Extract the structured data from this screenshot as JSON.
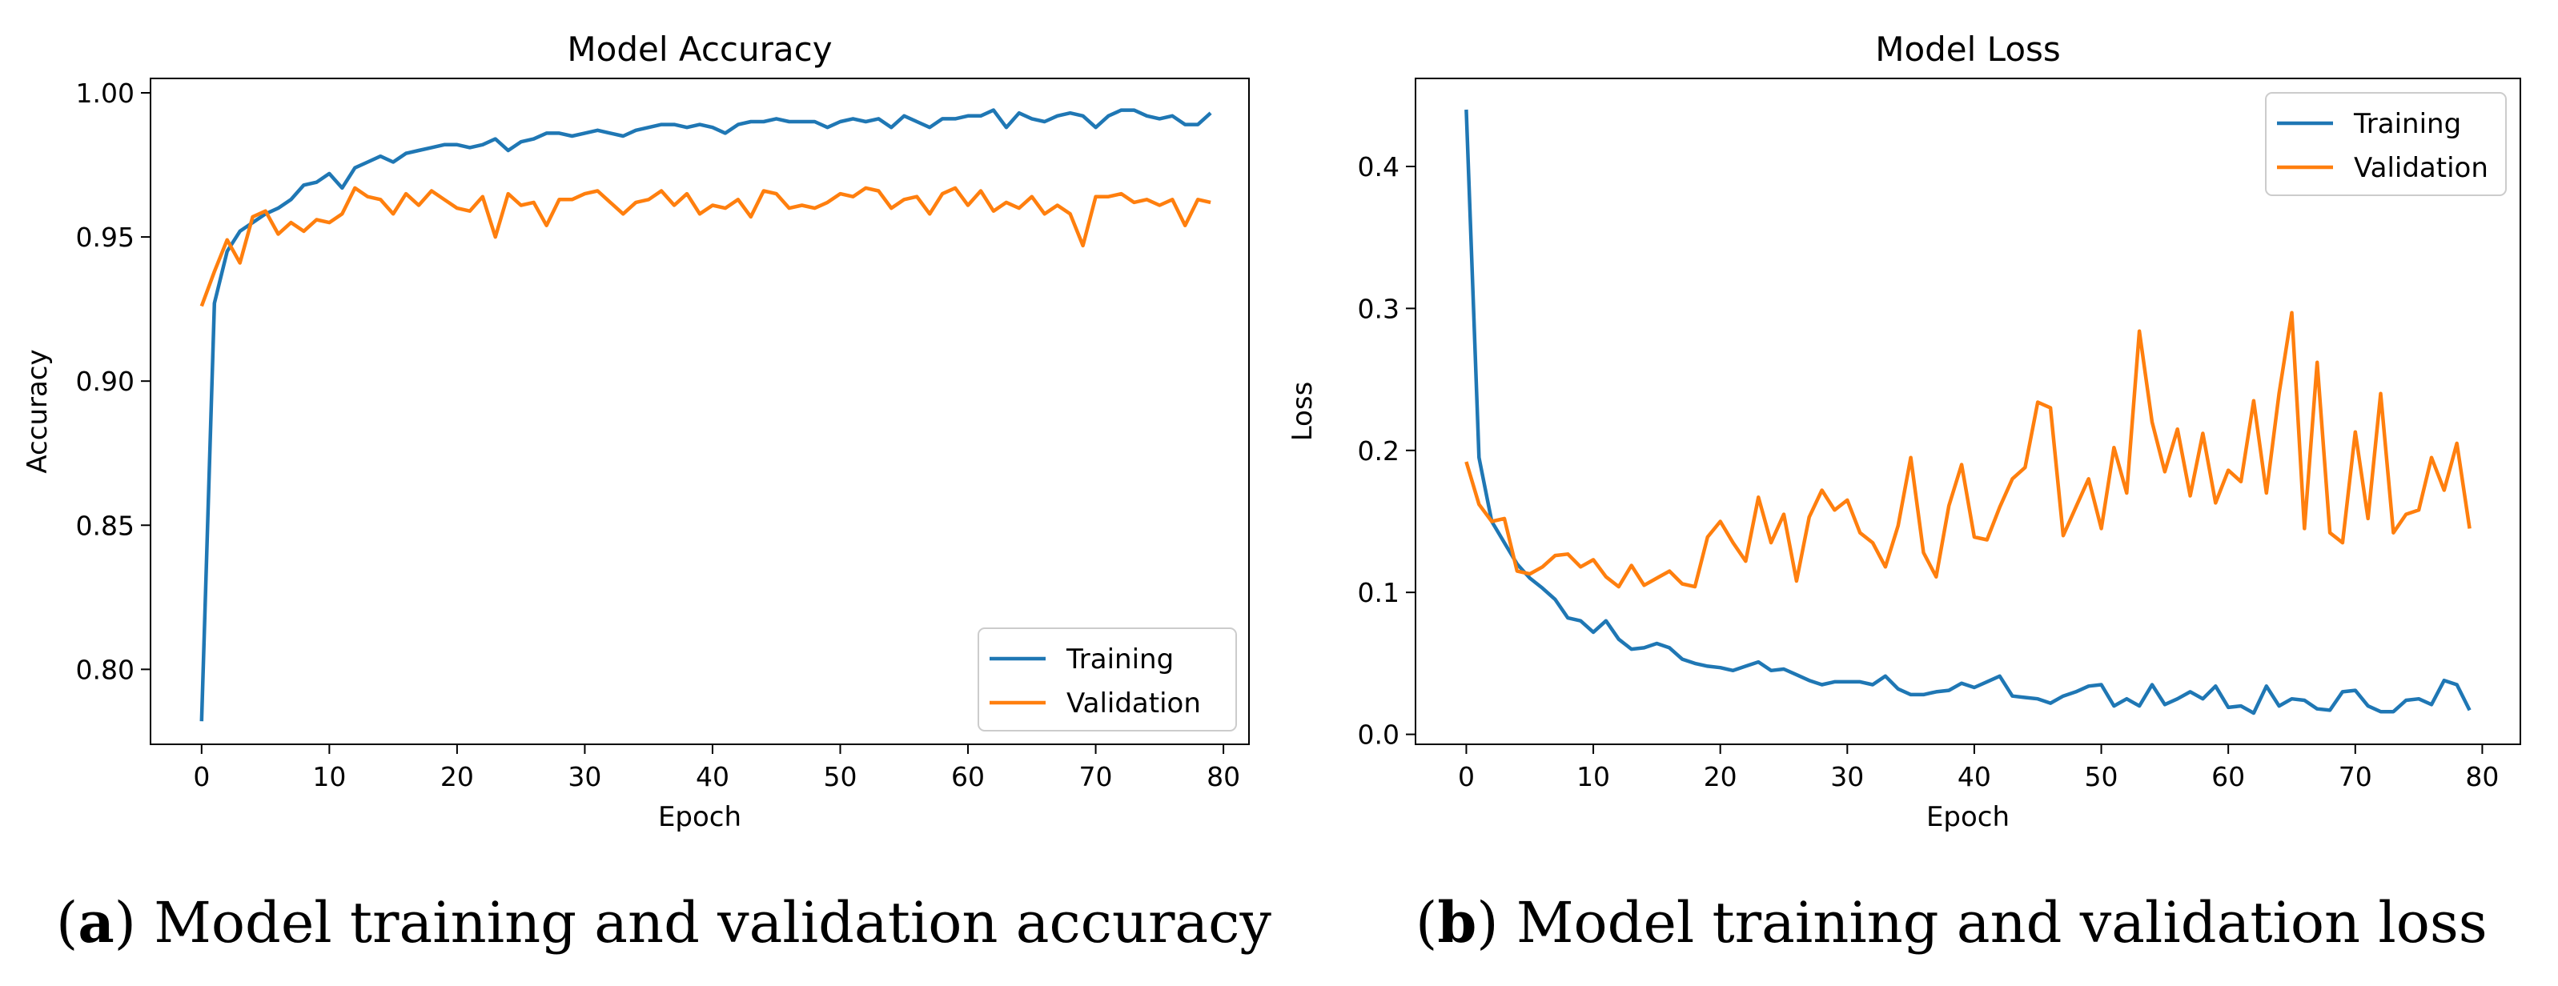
{
  "panels": [
    {
      "caption": {
        "letter": "a",
        "text": ") Model training and validation accuracy"
      },
      "chart_data": {
        "type": "line",
        "title": "Model Accuracy",
        "xlabel": "Epoch",
        "ylabel": "Accuracy",
        "xlim": [
          -4,
          82
        ],
        "ylim": [
          0.774,
          1.005
        ],
        "xticks": [
          0,
          10,
          20,
          30,
          40,
          50,
          60,
          70,
          80
        ],
        "yticks": [
          0.8,
          0.85,
          0.9,
          0.95,
          1.0
        ],
        "ytick_labels": [
          "0.80",
          "0.85",
          "0.90",
          "0.95",
          "1.00"
        ],
        "legend_position": "lower-right",
        "grid": false,
        "series": [
          {
            "name": "Training",
            "color": "#1f77b4",
            "values": [
              0.782,
              0.927,
              0.945,
              0.952,
              0.955,
              0.958,
              0.96,
              0.963,
              0.968,
              0.969,
              0.972,
              0.967,
              0.974,
              0.976,
              0.978,
              0.976,
              0.979,
              0.98,
              0.981,
              0.982,
              0.982,
              0.981,
              0.982,
              0.984,
              0.98,
              0.983,
              0.984,
              0.986,
              0.986,
              0.985,
              0.986,
              0.987,
              0.986,
              0.985,
              0.987,
              0.988,
              0.989,
              0.989,
              0.988,
              0.989,
              0.988,
              0.986,
              0.989,
              0.99,
              0.99,
              0.991,
              0.99,
              0.99,
              0.99,
              0.988,
              0.99,
              0.991,
              0.99,
              0.991,
              0.988,
              0.992,
              0.99,
              0.988,
              0.991,
              0.991,
              0.992,
              0.992,
              0.994,
              0.988,
              0.993,
              0.991,
              0.99,
              0.992,
              0.993,
              0.992,
              0.988,
              0.992,
              0.994,
              0.994,
              0.992,
              0.991,
              0.992,
              0.989,
              0.989,
              0.993
            ]
          },
          {
            "name": "Validation",
            "color": "#ff7f0e",
            "values": [
              0.926,
              0.938,
              0.949,
              0.941,
              0.957,
              0.959,
              0.951,
              0.955,
              0.952,
              0.956,
              0.955,
              0.958,
              0.967,
              0.964,
              0.963,
              0.958,
              0.965,
              0.961,
              0.966,
              0.963,
              0.96,
              0.959,
              0.964,
              0.95,
              0.965,
              0.961,
              0.962,
              0.954,
              0.963,
              0.963,
              0.965,
              0.966,
              0.962,
              0.958,
              0.962,
              0.963,
              0.966,
              0.961,
              0.965,
              0.958,
              0.961,
              0.96,
              0.963,
              0.957,
              0.966,
              0.965,
              0.96,
              0.961,
              0.96,
              0.962,
              0.965,
              0.964,
              0.967,
              0.966,
              0.96,
              0.963,
              0.964,
              0.958,
              0.965,
              0.967,
              0.961,
              0.966,
              0.959,
              0.962,
              0.96,
              0.964,
              0.958,
              0.961,
              0.958,
              0.947,
              0.964,
              0.964,
              0.965,
              0.962,
              0.963,
              0.961,
              0.963,
              0.954,
              0.963,
              0.962
            ]
          }
        ]
      }
    },
    {
      "caption": {
        "letter": "b",
        "text": ") Model training and validation loss"
      },
      "chart_data": {
        "type": "line",
        "title": "Model Loss",
        "xlabel": "Epoch",
        "ylabel": "Loss",
        "xlim": [
          -4,
          83
        ],
        "ylim": [
          -0.007,
          0.462
        ],
        "xticks": [
          0,
          10,
          20,
          30,
          40,
          50,
          60,
          70,
          80
        ],
        "yticks": [
          0.0,
          0.1,
          0.2,
          0.3,
          0.4
        ],
        "ytick_labels": [
          "0.0",
          "0.1",
          "0.2",
          "0.3",
          "0.4"
        ],
        "legend_position": "upper-right",
        "grid": false,
        "series": [
          {
            "name": "Training",
            "color": "#1f77b4",
            "values": [
              0.44,
              0.195,
              0.15,
              0.135,
              0.12,
              0.11,
              0.103,
              0.095,
              0.082,
              0.08,
              0.072,
              0.08,
              0.067,
              0.06,
              0.061,
              0.064,
              0.061,
              0.053,
              0.05,
              0.048,
              0.047,
              0.045,
              0.048,
              0.051,
              0.045,
              0.046,
              0.042,
              0.038,
              0.035,
              0.037,
              0.037,
              0.037,
              0.035,
              0.041,
              0.032,
              0.028,
              0.028,
              0.03,
              0.031,
              0.036,
              0.033,
              0.037,
              0.041,
              0.027,
              0.026,
              0.025,
              0.022,
              0.027,
              0.03,
              0.034,
              0.035,
              0.02,
              0.025,
              0.02,
              0.035,
              0.021,
              0.025,
              0.03,
              0.025,
              0.034,
              0.019,
              0.02,
              0.015,
              0.034,
              0.02,
              0.025,
              0.024,
              0.018,
              0.017,
              0.03,
              0.031,
              0.02,
              0.016,
              0.016,
              0.024,
              0.025,
              0.021,
              0.038,
              0.035,
              0.017
            ]
          },
          {
            "name": "Validation",
            "color": "#ff7f0e",
            "values": [
              0.192,
              0.162,
              0.15,
              0.152,
              0.115,
              0.113,
              0.118,
              0.126,
              0.127,
              0.118,
              0.123,
              0.111,
              0.104,
              0.119,
              0.105,
              0.11,
              0.115,
              0.106,
              0.104,
              0.139,
              0.15,
              0.135,
              0.122,
              0.167,
              0.135,
              0.155,
              0.108,
              0.153,
              0.172,
              0.158,
              0.165,
              0.142,
              0.135,
              0.118,
              0.147,
              0.195,
              0.128,
              0.111,
              0.161,
              0.19,
              0.139,
              0.137,
              0.16,
              0.18,
              0.188,
              0.234,
              0.23,
              0.14,
              0.16,
              0.18,
              0.145,
              0.202,
              0.17,
              0.284,
              0.22,
              0.185,
              0.215,
              0.168,
              0.212,
              0.163,
              0.186,
              0.178,
              0.235,
              0.17,
              0.24,
              0.297,
              0.145,
              0.262,
              0.142,
              0.135,
              0.213,
              0.152,
              0.24,
              0.142,
              0.155,
              0.158,
              0.195,
              0.172,
              0.205,
              0.145
            ]
          }
        ]
      }
    }
  ]
}
